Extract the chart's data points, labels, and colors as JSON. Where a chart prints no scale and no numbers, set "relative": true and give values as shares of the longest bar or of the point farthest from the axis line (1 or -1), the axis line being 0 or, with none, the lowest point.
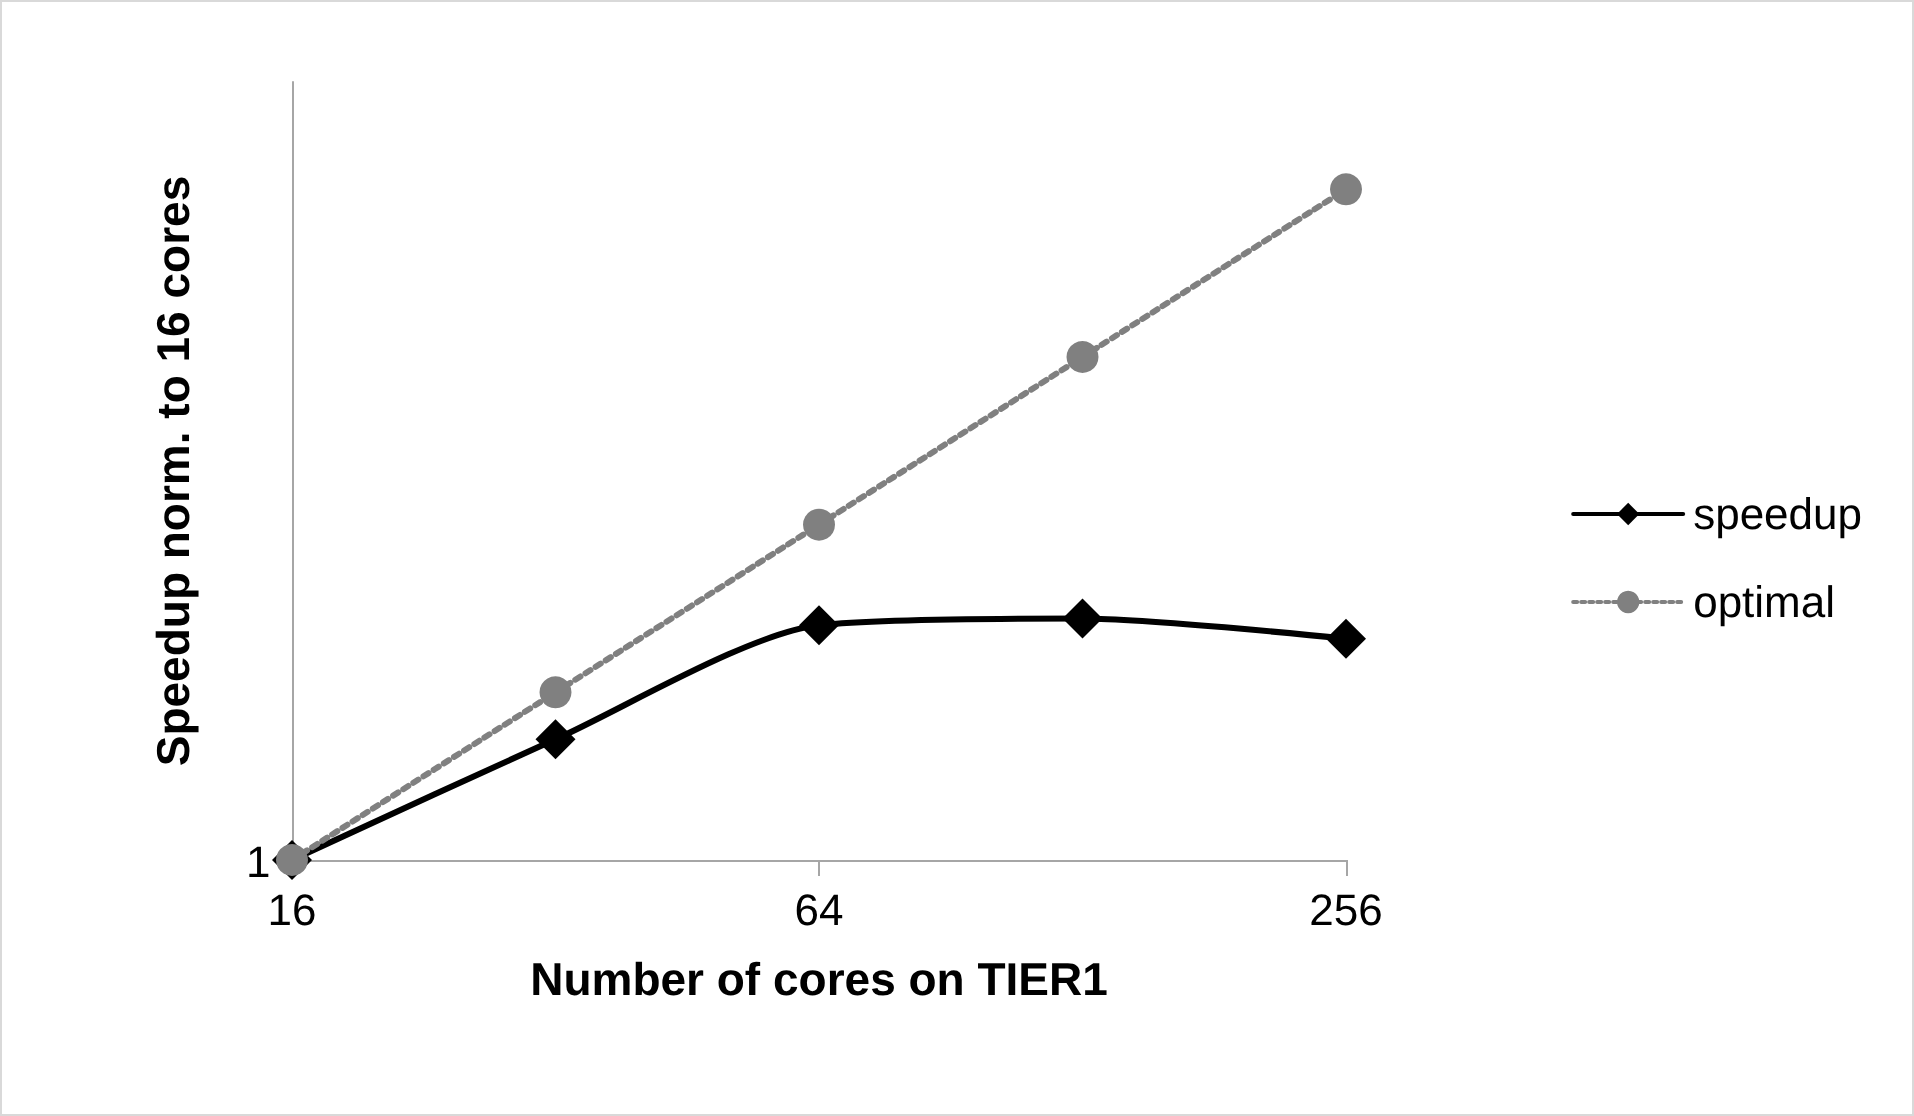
{
  "chart_data": {
    "type": "line",
    "xlabel": "Number of cores on TIER1",
    "ylabel": "Speedup norm. to 16 cores",
    "x": [
      16,
      32,
      64,
      128,
      256
    ],
    "xlim": [
      16,
      256
    ],
    "xticks": [
      16,
      64,
      256
    ],
    "log": "x",
    "relative": true,
    "series": [
      {
        "name": "speedup",
        "color": "#000000",
        "values": [
          0,
          0.18,
          0.35,
          0.36,
          0.33
        ],
        "marker": "diamond",
        "line_style": "solid"
      },
      {
        "name": "optimal",
        "color": "#808080",
        "values": [
          0,
          0.25,
          0.5,
          0.75,
          1
        ],
        "marker": "circle",
        "line_style": "dotted"
      }
    ],
    "annotations": [
      "1"
    ],
    "grid": false,
    "legend": "right"
  }
}
